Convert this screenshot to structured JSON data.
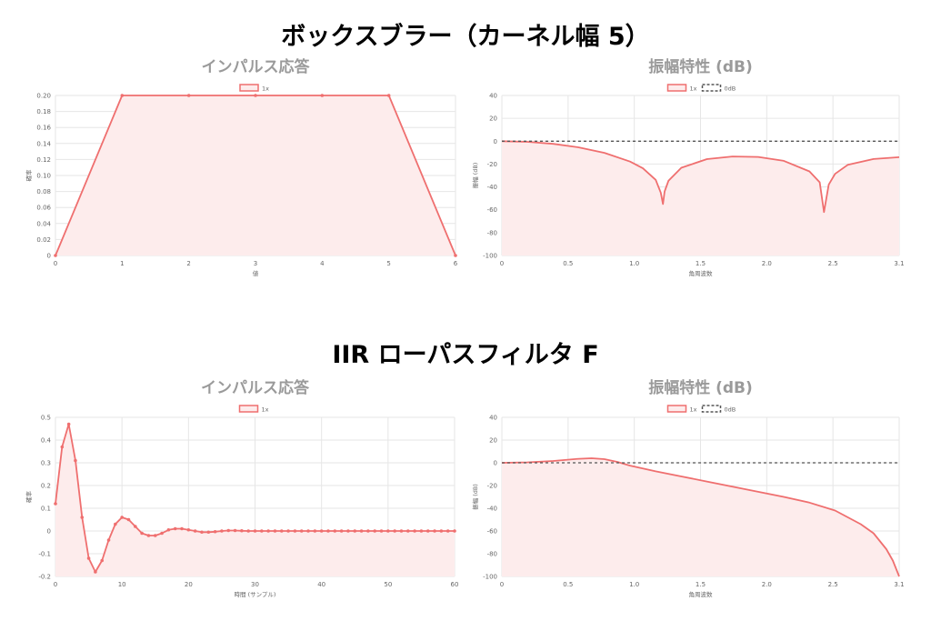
{
  "sections": [
    {
      "title": "ボックスブラー（カーネル幅 5）"
    },
    {
      "title": "IIR ローパスフィルタ F"
    }
  ],
  "colors": {
    "series": "#ef6f6f",
    "fill": "#fdecec",
    "reference": "#555555"
  },
  "chart_data": [
    {
      "id": "box_impulse",
      "type": "area",
      "title": "インパルス応答",
      "xlabel": "値",
      "ylabel": "確率",
      "xlim": [
        0,
        6
      ],
      "ylim": [
        0,
        0.2
      ],
      "xticks": [
        "0",
        "1",
        "2",
        "3",
        "4",
        "5",
        "6"
      ],
      "yticks": [
        "0",
        "0.02",
        "0.04",
        "0.06",
        "0.08",
        "0.10",
        "0.12",
        "0.14",
        "0.16",
        "0.18",
        "0.20"
      ],
      "legend": [
        "1x"
      ],
      "series": [
        {
          "name": "1x",
          "x": [
            0,
            1,
            2,
            3,
            4,
            5,
            6
          ],
          "y": [
            0,
            0.2,
            0.2,
            0.2,
            0.2,
            0.2,
            0
          ]
        }
      ],
      "markers": true,
      "grid": true
    },
    {
      "id": "box_mag",
      "type": "area",
      "title": "振幅特性 (dB)",
      "xlabel": "角周波数",
      "ylabel": "振幅 (dB)",
      "xlim": [
        0,
        3.1
      ],
      "ylim": [
        -100,
        40
      ],
      "xticks": [
        "0",
        "0.5",
        "1.0",
        "1.5",
        "2.0",
        "2.5",
        "3.1"
      ],
      "yticks": [
        "-100",
        "-80",
        "-60",
        "-40",
        "-20",
        "0",
        "20",
        "40"
      ],
      "legend": [
        "1x",
        "0dB"
      ],
      "series": [
        {
          "name": "1x",
          "x": [
            0,
            0.2,
            0.4,
            0.6,
            0.8,
            1.0,
            1.1,
            1.2,
            1.24,
            1.257,
            1.27,
            1.3,
            1.4,
            1.6,
            1.8,
            2.0,
            2.2,
            2.4,
            2.48,
            2.513,
            2.55,
            2.6,
            2.7,
            2.9,
            3.1
          ],
          "y": [
            0,
            -0.6,
            -2.3,
            -5.4,
            -10.2,
            -17.8,
            -23.7,
            -33.8,
            -45.0,
            -55.0,
            -44.0,
            -34.5,
            -23.2,
            -15.7,
            -13.4,
            -13.8,
            -17.2,
            -26.4,
            -36.0,
            -62.0,
            -38.0,
            -28.6,
            -20.6,
            -15.6,
            -14.0
          ]
        },
        {
          "name": "0dB",
          "x": [
            0,
            3.1
          ],
          "y": [
            0,
            0
          ],
          "dashed": true
        }
      ],
      "markers": false,
      "grid": true
    },
    {
      "id": "iir_impulse",
      "type": "area",
      "title": "インパルス応答",
      "xlabel": "時間 (サンプル)",
      "ylabel": "確率",
      "xlim": [
        0,
        60
      ],
      "ylim": [
        -0.2,
        0.5
      ],
      "xticks": [
        "0",
        "10",
        "20",
        "30",
        "40",
        "50",
        "60"
      ],
      "yticks": [
        "-0.2",
        "-0.1",
        "0",
        "0.1",
        "0.2",
        "0.3",
        "0.4",
        "0.5"
      ],
      "legend": [
        "1x"
      ],
      "series": [
        {
          "name": "1x",
          "x": [
            0,
            1,
            2,
            3,
            4,
            5,
            6,
            7,
            8,
            9,
            10,
            11,
            12,
            13,
            14,
            15,
            16,
            17,
            18,
            19,
            20,
            21,
            22,
            23,
            24,
            25,
            26,
            27,
            28,
            29,
            30,
            31,
            32,
            33,
            34,
            35,
            36,
            37,
            38,
            39,
            40,
            41,
            42,
            43,
            44,
            45,
            46,
            47,
            48,
            49,
            50,
            51,
            52,
            53,
            54,
            55,
            56,
            57,
            58,
            59,
            60
          ],
          "y": [
            0.12,
            0.37,
            0.47,
            0.31,
            0.06,
            -0.12,
            -0.18,
            -0.13,
            -0.04,
            0.03,
            0.06,
            0.05,
            0.02,
            -0.01,
            -0.02,
            -0.02,
            -0.01,
            0.005,
            0.01,
            0.01,
            0.005,
            0,
            -0.005,
            -0.005,
            -0.003,
            0,
            0.002,
            0.002,
            0.001,
            0,
            0,
            0,
            0,
            0,
            0,
            0,
            0,
            0,
            0,
            0,
            0,
            0,
            0,
            0,
            0,
            0,
            0,
            0,
            0,
            0,
            0,
            0,
            0,
            0,
            0,
            0,
            0,
            0,
            0,
            0,
            0
          ]
        }
      ],
      "markers": true,
      "grid": true
    },
    {
      "id": "iir_mag",
      "type": "area",
      "title": "振幅特性 (dB)",
      "xlabel": "角周波数",
      "ylabel": "振幅 (dB)",
      "xlim": [
        0,
        3.1
      ],
      "ylim": [
        -100,
        40
      ],
      "xticks": [
        "0",
        "0.5",
        "1.0",
        "1.5",
        "2.0",
        "2.5",
        "3.1"
      ],
      "yticks": [
        "-100",
        "-80",
        "-60",
        "-40",
        "-20",
        "0",
        "20",
        "40"
      ],
      "legend": [
        "1x",
        "0dB"
      ],
      "series": [
        {
          "name": "1x",
          "x": [
            0,
            0.2,
            0.4,
            0.6,
            0.7,
            0.8,
            0.9,
            1.0,
            1.2,
            1.4,
            1.6,
            1.8,
            2.0,
            2.2,
            2.4,
            2.6,
            2.8,
            2.9,
            3.0,
            3.05,
            3.1
          ],
          "y": [
            0,
            0.4,
            1.6,
            3.5,
            4.0,
            3.2,
            0.8,
            -2.5,
            -7.5,
            -12.0,
            -16.5,
            -21.0,
            -25.5,
            -30.0,
            -35.0,
            -42.0,
            -54.0,
            -62.0,
            -76.0,
            -86.0,
            -100.0
          ]
        },
        {
          "name": "0dB",
          "x": [
            0,
            3.1
          ],
          "y": [
            0,
            0
          ],
          "dashed": true
        }
      ],
      "markers": false,
      "grid": true
    }
  ]
}
